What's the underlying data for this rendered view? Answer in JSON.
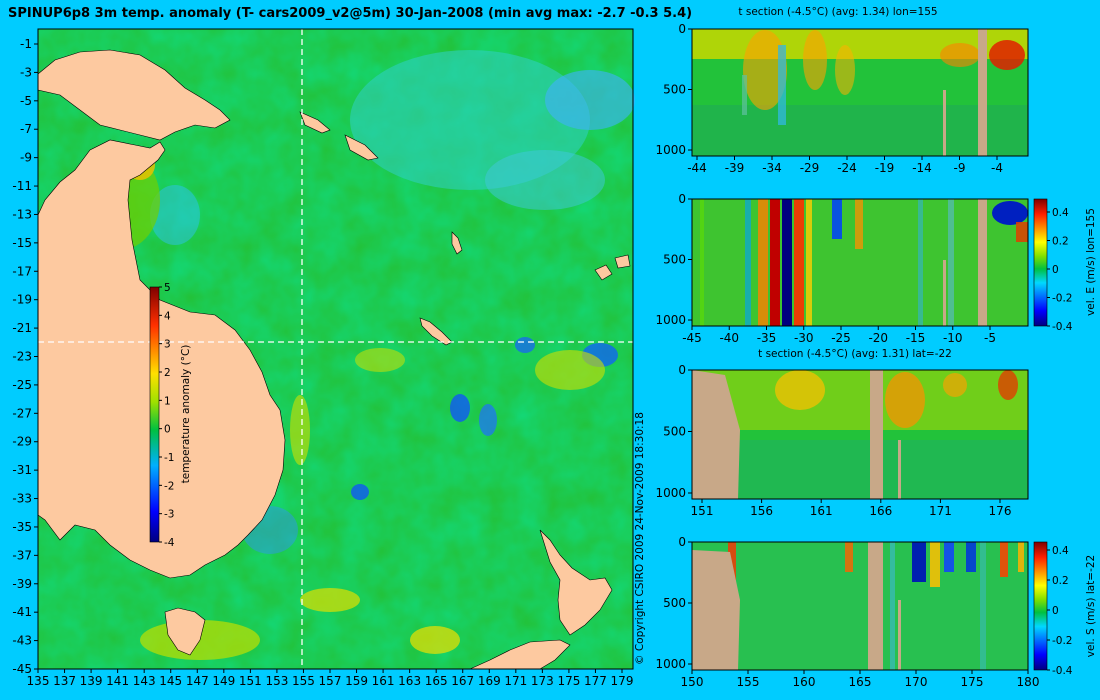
{
  "chart_data": [
    {
      "type": "heatmap",
      "title": "SPINUP6p8 3m temp. anomaly (T- cars2009_v2@5m) 30-Jan-2008 (min avg max: -2.7 -0.3 5.4)",
      "x_ticks": [
        "135",
        "137",
        "139",
        "141",
        "143",
        "145",
        "147",
        "149",
        "151",
        "153",
        "155",
        "157",
        "159",
        "161",
        "163",
        "165",
        "167",
        "169",
        "171",
        "173",
        "175",
        "177",
        "179"
      ],
      "y_ticks": [
        "-1",
        "-3",
        "-5",
        "-7",
        "-9",
        "-11",
        "-13",
        "-15",
        "-17",
        "-19",
        "-21",
        "-23",
        "-25",
        "-27",
        "-29",
        "-31",
        "-33",
        "-35",
        "-37",
        "-39",
        "-41",
        "-43",
        "-45"
      ],
      "xlim": [
        135,
        180
      ],
      "ylim": [
        -45,
        0
      ],
      "crosshair": {
        "lon": 155,
        "lat": -22
      },
      "colorbar": {
        "label": "temperature anomaly (°C)",
        "ticks": [
          "5",
          "4",
          "3",
          "2",
          "1",
          "0",
          "-1",
          "-2",
          "-3",
          "-4"
        ],
        "range": [
          -4,
          5
        ]
      },
      "copyright": "© Copyright CSIRO 2009   24-Nov-2009 18:30:18"
    },
    {
      "type": "heatmap",
      "title": "t section (-4.5°C) (avg: 1.34) lon=155",
      "x_ticks": [
        "-44",
        "-39",
        "-34",
        "-29",
        "-24",
        "-19",
        "-14",
        "-9",
        "-4"
      ],
      "y_ticks": [
        "0",
        "500",
        "1000"
      ]
    },
    {
      "type": "heatmap",
      "title": "",
      "x_ticks": [
        "-45",
        "-40",
        "-35",
        "-30",
        "-25",
        "-20",
        "-15",
        "-10",
        "-5"
      ],
      "y_ticks": [
        "0",
        "500",
        "1000"
      ],
      "colorbar": {
        "label": "vel. E (m/s) lon=155",
        "ticks": [
          "0.4",
          "0.2",
          "0",
          "-0.2",
          "-0.4"
        ],
        "range": [
          -0.4,
          0.4
        ]
      }
    },
    {
      "type": "heatmap",
      "title": "t section (-4.5°C) (avg: 1.31) lat=-22",
      "x_ticks": [
        "151",
        "156",
        "161",
        "166",
        "171",
        "176"
      ],
      "y_ticks": [
        "0",
        "500",
        "1000"
      ]
    },
    {
      "type": "heatmap",
      "title": "",
      "x_ticks": [
        "150",
        "155",
        "160",
        "165",
        "170",
        "175",
        "180"
      ],
      "y_ticks": [
        "0",
        "500",
        "1000"
      ],
      "colorbar": {
        "label": "vel. S (m/s) lat=-22",
        "ticks": [
          "0.4",
          "0.2",
          "0",
          "-0.2",
          "-0.4"
        ],
        "range": [
          -0.4,
          0.4
        ]
      }
    }
  ]
}
